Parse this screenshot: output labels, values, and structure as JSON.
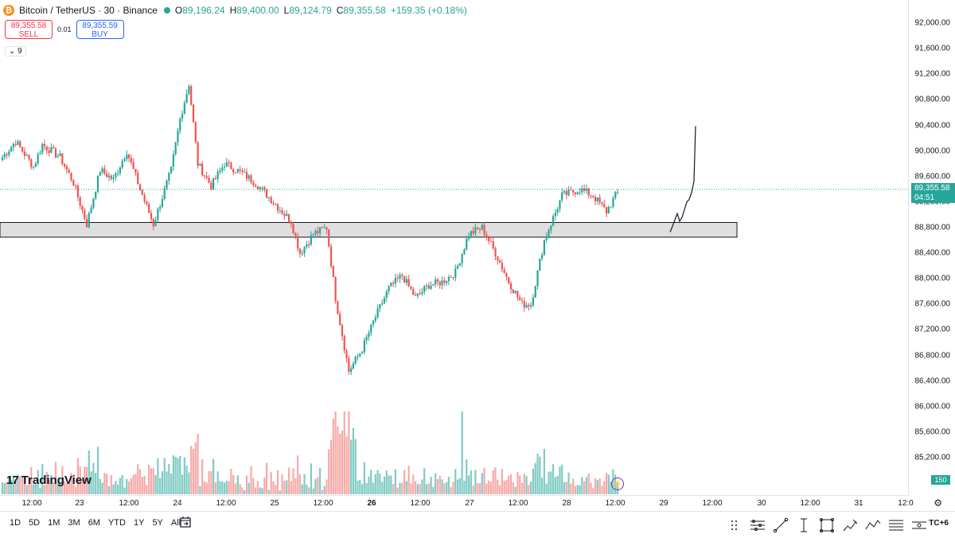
{
  "header": {
    "symbol": "Bitcoin / TetherUS · 30 · Binance",
    "coin_glyph": "₿",
    "open_key": "O",
    "open": "89,196.24",
    "high_key": "H",
    "high": "89,400.00",
    "low_key": "L",
    "low": "89,124.79",
    "close_key": "C",
    "close": "89,355.58",
    "change": "+159.35 (+0.18%)"
  },
  "trade": {
    "sell_price": "89,355.58",
    "sell_label": "SELL",
    "spread": "0.01",
    "buy_price": "89,355.59",
    "buy_label": "BUY"
  },
  "indicator": {
    "label": "⌄ 9"
  },
  "price_axis": {
    "ticks": [
      "92,000.00",
      "91,600.00",
      "91,200.00",
      "90,800.00",
      "90,400.00",
      "90,000.00",
      "89,600.00",
      "89,200.00",
      "88,800.00",
      "88,400.00",
      "88,000.00",
      "87,600.00",
      "87,200.00",
      "86,800.00",
      "86,400.00",
      "86,000.00",
      "85,600.00",
      "85,200.00"
    ],
    "current_price": "89,355.58",
    "countdown": "04:51",
    "volume_label": "150"
  },
  "time_axis": {
    "labels": [
      "12:00",
      "23",
      "12:00",
      "24",
      "12:00",
      "25",
      "12:00",
      "26",
      "12:00",
      "27",
      "12:00",
      "28",
      "12:00",
      "29",
      "12:00",
      "30",
      "12:00",
      "31",
      "12:0"
    ]
  },
  "ranges": [
    "1D",
    "5D",
    "1M",
    "3M",
    "6M",
    "YTD",
    "1Y",
    "5Y",
    "All"
  ],
  "timezone": "TC+6",
  "logo": {
    "mark": "17",
    "text": "TradingView"
  },
  "colors": {
    "up": "#26a69a",
    "down": "#ef5350",
    "vol_up": "#80cbc4",
    "vol_down": "#f7a9a7",
    "zone_fill": "#d9d9d9",
    "current_line": "#26a69a"
  },
  "chart_data": {
    "type": "candlestick",
    "symbol": "BTCUSDT",
    "interval": "30",
    "ylim": [
      85000,
      92200
    ],
    "zone": {
      "low": 88650,
      "high": 88880
    },
    "current_price": 89355.58,
    "projection_y": [
      88730,
      88820,
      88920,
      89020,
      88900,
      88960,
      89080,
      89200,
      89240,
      89350,
      89520,
      90390
    ],
    "anchors": [
      {
        "i": 0,
        "p": 89900
      },
      {
        "i": 6,
        "p": 90150
      },
      {
        "i": 14,
        "p": 89750
      },
      {
        "i": 18,
        "p": 90100
      },
      {
        "i": 26,
        "p": 89900
      },
      {
        "i": 32,
        "p": 89500
      },
      {
        "i": 38,
        "p": 88850
      },
      {
        "i": 44,
        "p": 89700
      },
      {
        "i": 50,
        "p": 89550
      },
      {
        "i": 56,
        "p": 90000
      },
      {
        "i": 62,
        "p": 89400
      },
      {
        "i": 68,
        "p": 88850
      },
      {
        "i": 76,
        "p": 89700
      },
      {
        "i": 80,
        "p": 90500
      },
      {
        "i": 84,
        "p": 91050
      },
      {
        "i": 88,
        "p": 89800
      },
      {
        "i": 94,
        "p": 89450
      },
      {
        "i": 100,
        "p": 89800
      },
      {
        "i": 108,
        "p": 89650
      },
      {
        "i": 114,
        "p": 89500
      },
      {
        "i": 122,
        "p": 89200
      },
      {
        "i": 130,
        "p": 88900
      },
      {
        "i": 134,
        "p": 88400
      },
      {
        "i": 140,
        "p": 88700
      },
      {
        "i": 146,
        "p": 88800
      },
      {
        "i": 150,
        "p": 87700
      },
      {
        "i": 156,
        "p": 86550
      },
      {
        "i": 162,
        "p": 86900
      },
      {
        "i": 168,
        "p": 87400
      },
      {
        "i": 174,
        "p": 87850
      },
      {
        "i": 180,
        "p": 88050
      },
      {
        "i": 186,
        "p": 87700
      },
      {
        "i": 192,
        "p": 87900
      },
      {
        "i": 198,
        "p": 87950
      },
      {
        "i": 204,
        "p": 88100
      },
      {
        "i": 210,
        "p": 88700
      },
      {
        "i": 216,
        "p": 88800
      },
      {
        "i": 222,
        "p": 88400
      },
      {
        "i": 228,
        "p": 87950
      },
      {
        "i": 234,
        "p": 87600
      },
      {
        "i": 238,
        "p": 87600
      },
      {
        "i": 244,
        "p": 88600
      },
      {
        "i": 252,
        "p": 89300
      },
      {
        "i": 260,
        "p": 89400
      },
      {
        "i": 266,
        "p": 89300
      },
      {
        "i": 272,
        "p": 89050
      },
      {
        "i": 277,
        "p": 89356
      }
    ],
    "volume_range": [
      40,
      1000
    ]
  }
}
